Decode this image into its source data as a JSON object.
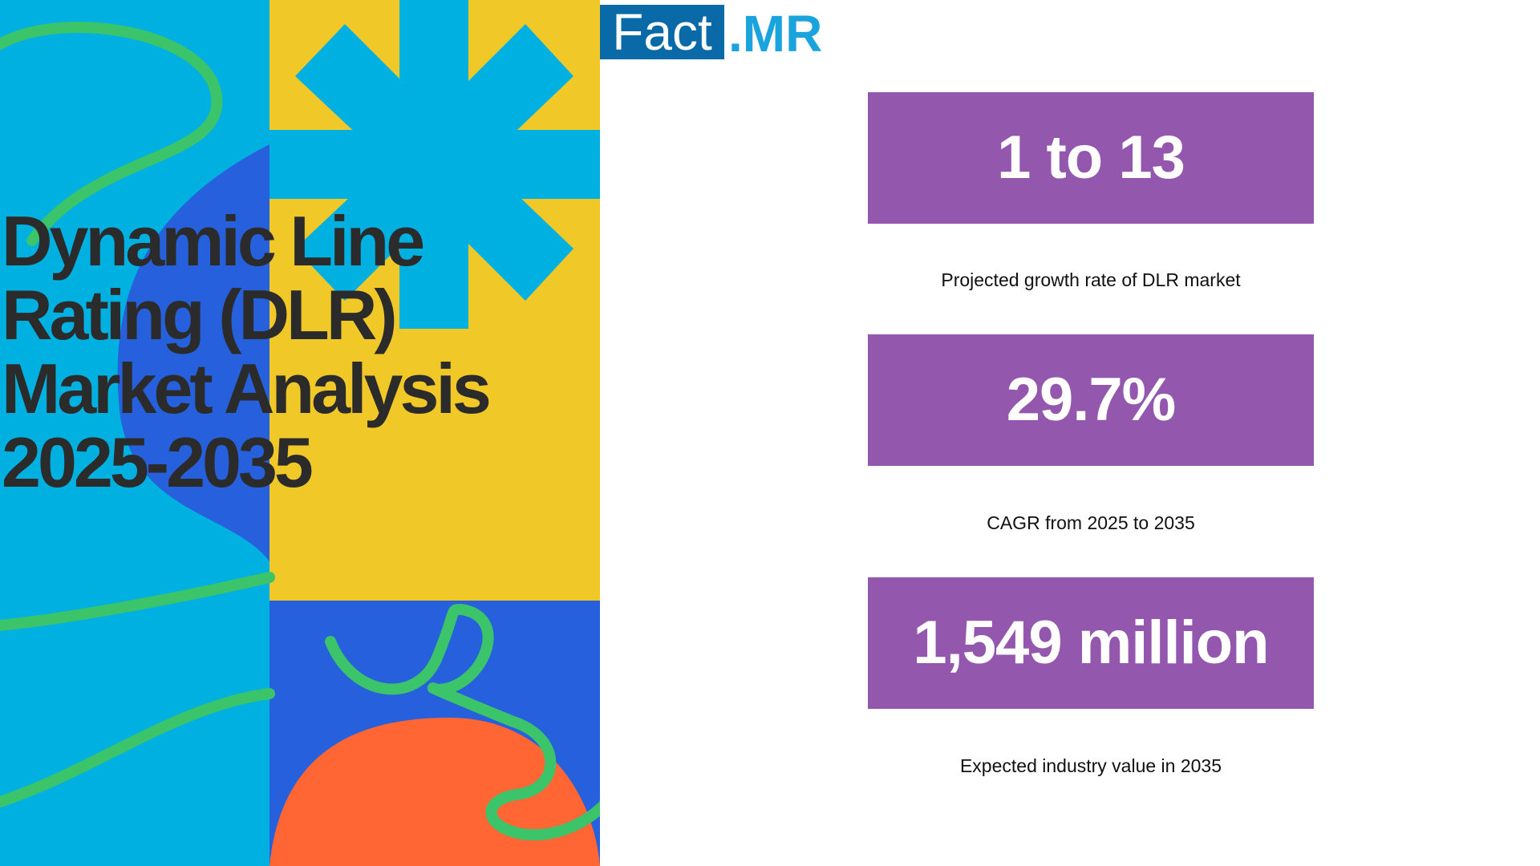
{
  "logo": {
    "left": "Fact",
    "right": ".MR"
  },
  "title_lines": [
    "Dynamic Line",
    "Rating (DLR)",
    "Market Analysis",
    "2025-2035"
  ],
  "stats": [
    {
      "value": "1 to 13",
      "caption": "Projected growth rate of DLR market"
    },
    {
      "value": "29.7%",
      "caption": "CAGR from 2025 to 2035"
    },
    {
      "value": "1,549 million",
      "caption": "Expected industry value in 2035"
    }
  ]
}
